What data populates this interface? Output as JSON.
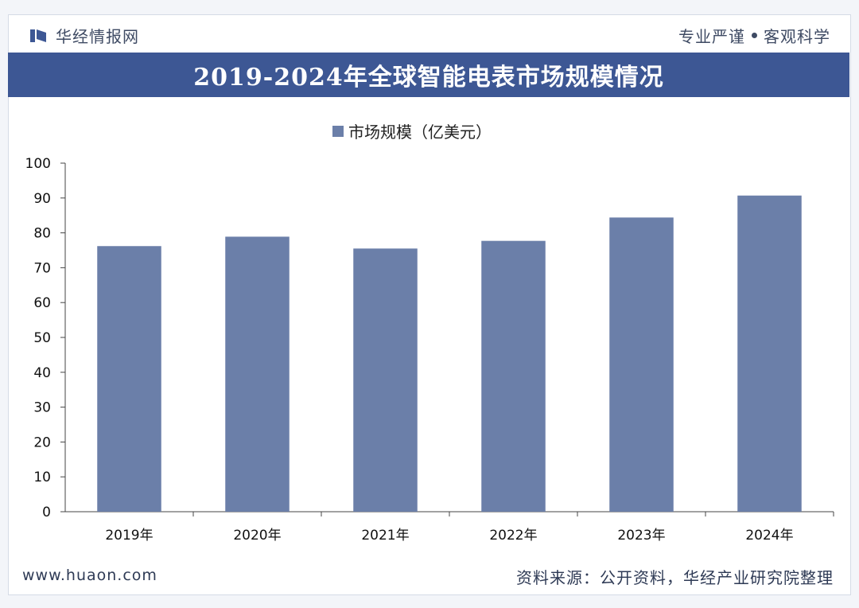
{
  "header": {
    "brand_name": "华经情报网",
    "slogan_left": "专业严谨",
    "slogan_right": "客观科学"
  },
  "colors": {
    "title_bar": "#3d5794",
    "bar": "#6b7fa9",
    "background": "#f3f5f9"
  },
  "chart_data": {
    "type": "bar",
    "title": "2019-2024年全球智能电表市场规模情况",
    "categories": [
      "2019年",
      "2020年",
      "2021年",
      "2022年",
      "2023年",
      "2024年"
    ],
    "series": [
      {
        "name": "市场规模（亿美元）",
        "values": [
          76.2,
          78.9,
          75.5,
          77.7,
          84.4,
          90.7
        ]
      }
    ],
    "xlabel": "",
    "ylabel": "",
    "ylim": [
      0,
      100
    ],
    "yticks": [
      0,
      10,
      20,
      30,
      40,
      50,
      60,
      70,
      80,
      90,
      100
    ],
    "legend_position": "top-center",
    "grid": false
  },
  "footer": {
    "url": "www.huaon.com",
    "source": "资料来源：公开资料，华经产业研究院整理"
  }
}
